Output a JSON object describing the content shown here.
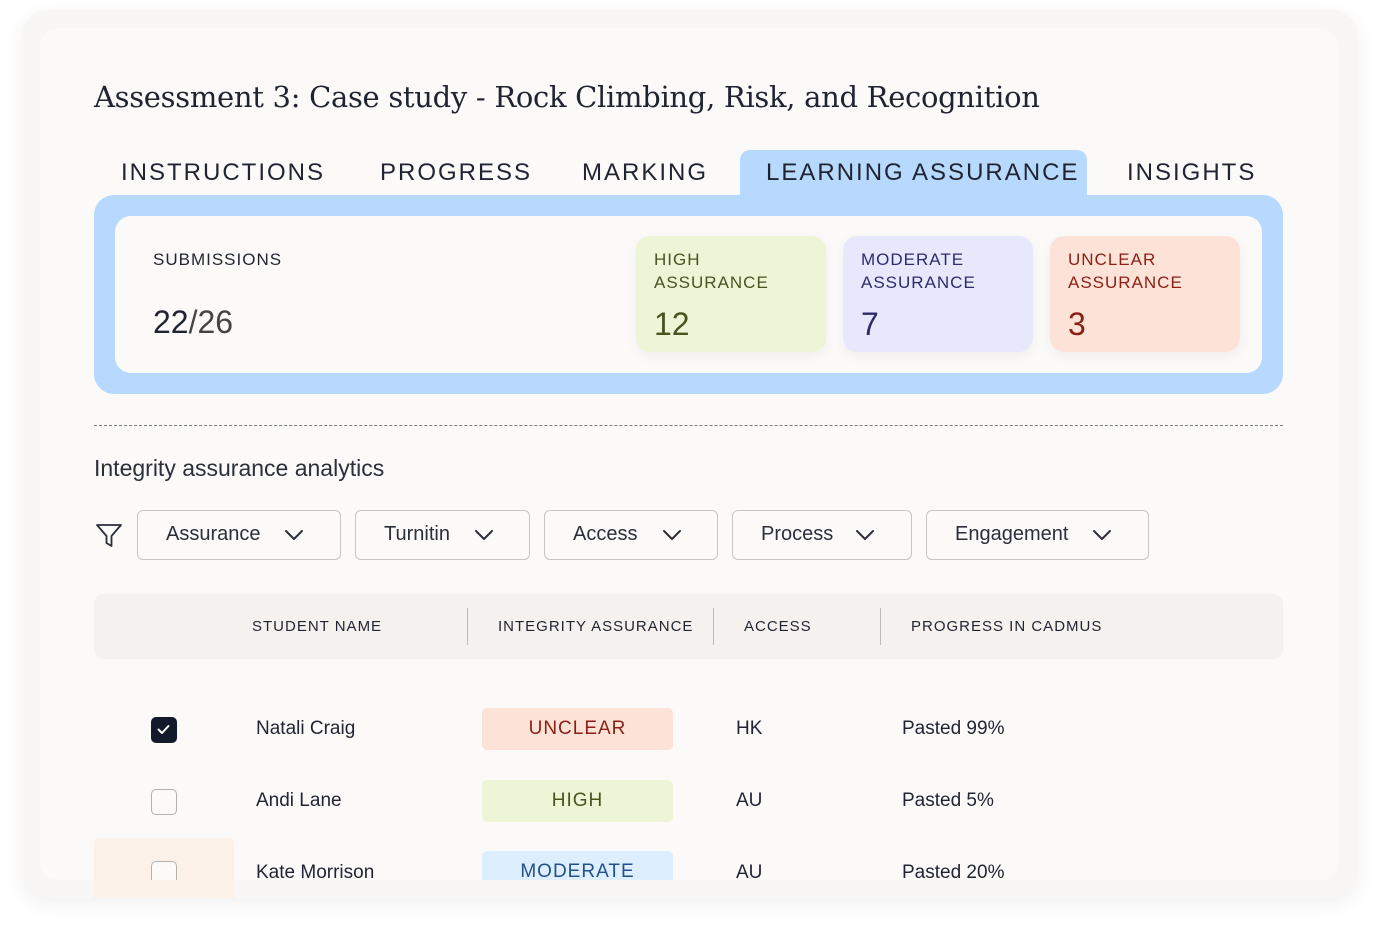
{
  "title": "Assessment 3: Case study - Rock Climbing, Risk, and Recognition",
  "tabs": [
    {
      "label": "INSTRUCTIONS",
      "active": false
    },
    {
      "label": "PROGRESS",
      "active": false
    },
    {
      "label": "MARKING",
      "active": false
    },
    {
      "label": "LEARNING ASSURANCE",
      "active": true
    },
    {
      "label": "INSIGHTS",
      "active": false
    }
  ],
  "summary": {
    "submissions_label": "SUBMISSIONS",
    "submitted": "22",
    "total": "/26",
    "high": {
      "label_line1": "HIGH",
      "label_line2": "ASSURANCE",
      "value": "12"
    },
    "moderate": {
      "label_line1": "MODERATE",
      "label_line2": "ASSURANCE",
      "value": "7"
    },
    "unclear": {
      "label_line1": "UNCLEAR",
      "label_line2": "ASSURANCE",
      "value": "3"
    }
  },
  "analytics": {
    "section_title": "Integrity assurance analytics",
    "filters": [
      "Assurance",
      "Turnitin",
      "Access",
      "Process",
      "Engagement"
    ]
  },
  "table": {
    "columns": [
      "STUDENT NAME",
      "INTEGRITY ASSURANCE",
      "ACCESS",
      "PROGRESS IN CADMUS"
    ],
    "rows": [
      {
        "name": "Natali Craig",
        "assurance": "UNCLEAR",
        "access": "HK",
        "progress": "Pasted 99%",
        "checked": true
      },
      {
        "name": "Andi Lane",
        "assurance": "HIGH",
        "access": "AU",
        "progress": "Pasted 5%",
        "checked": false
      },
      {
        "name": "Kate Morrison",
        "assurance": "MODERATE",
        "access": "AU",
        "progress": "Pasted 20%",
        "checked": false
      }
    ]
  },
  "colors": {
    "tab_active": "#b6d9fd",
    "high": "#eef5d6",
    "moderate": "#e8e8fd",
    "unclear": "#fde3d7",
    "checkbox_checked": "#12192b"
  },
  "icons": {
    "filter": "filter-icon",
    "dropdown": "chevron-down-icon",
    "check": "check-icon"
  }
}
